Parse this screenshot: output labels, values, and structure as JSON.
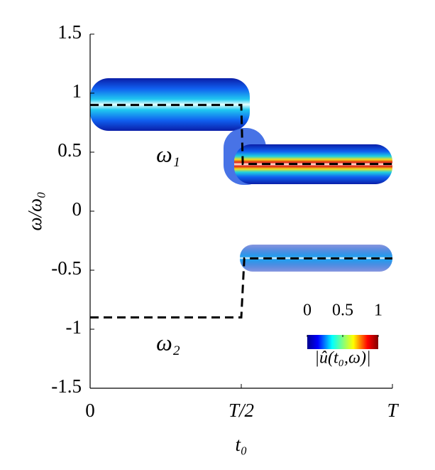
{
  "chart_data": {
    "type": "line",
    "xlabel": "t₀",
    "ylabel": "ω/ω₀",
    "xlim": [
      0,
      1
    ],
    "ylim": [
      -1.5,
      1.5
    ],
    "xticks": [
      0,
      {
        "value": 0.5,
        "label": "T/2"
      },
      {
        "value": 1,
        "label": "T"
      }
    ],
    "yticks": [
      1.5,
      1,
      0.5,
      0,
      -0.5,
      -1,
      -1.5
    ],
    "series": [
      {
        "name": "ω₁",
        "color": "#000000",
        "x": [
          0,
          0.5,
          0.505,
          1
        ],
        "values": [
          0.9,
          0.9,
          0.4,
          0.4
        ]
      },
      {
        "name": "ω₂",
        "color": "#000000",
        "x": [
          0,
          0.5,
          0.51,
          1
        ],
        "values": [
          -0.9,
          -0.9,
          -0.4,
          -0.4
        ]
      }
    ],
    "colorbar": {
      "label": "|û(t₀,ω)|",
      "lim": [
        0,
        1
      ],
      "ticks": [
        0,
        0.5,
        1
      ]
    }
  }
}
